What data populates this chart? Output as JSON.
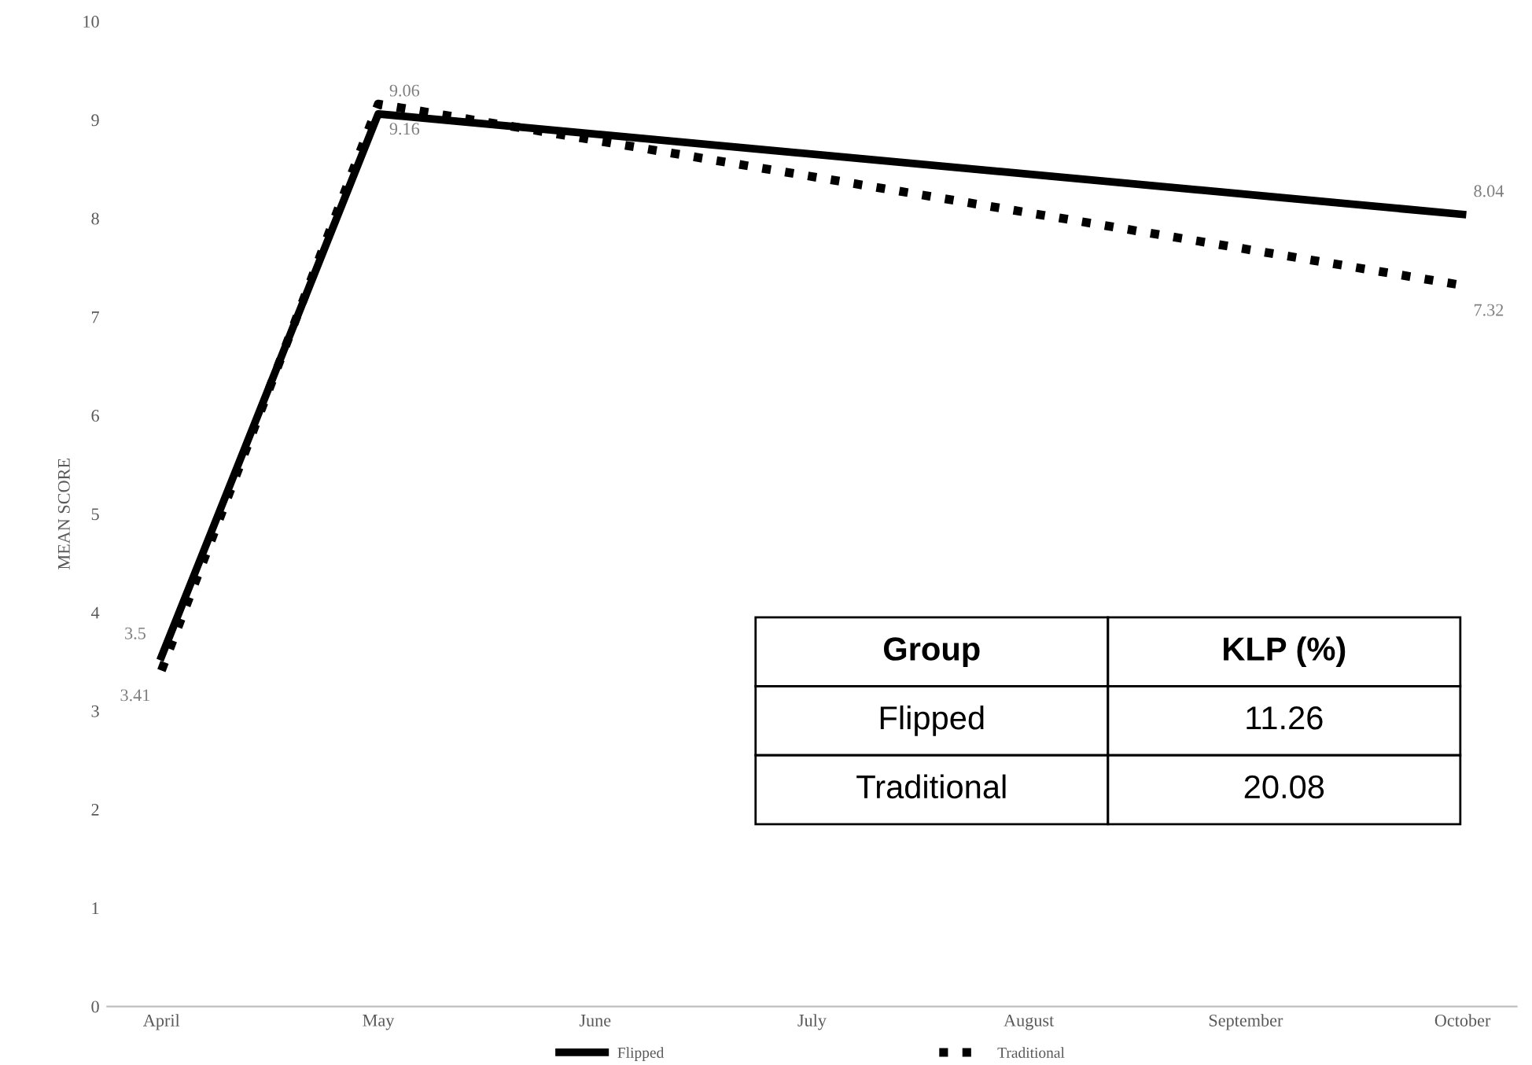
{
  "chart_data": {
    "type": "line",
    "ylabel": "MEAN SCORE",
    "categories": [
      "April",
      "May",
      "June",
      "July",
      "August",
      "September",
      "October"
    ],
    "series": [
      {
        "name": "Flipped",
        "color": "#000000",
        "line_style": "solid",
        "values": [
          3.55,
          9.06,
          null,
          null,
          null,
          null,
          8.04
        ],
        "value_labels": [
          "3.5",
          "9.06",
          null,
          null,
          null,
          null,
          "8.04"
        ]
      },
      {
        "name": "Traditional",
        "color": "#000000",
        "line_style": "dotted",
        "values": [
          3.41,
          9.16,
          null,
          null,
          null,
          null,
          7.32
        ],
        "value_labels": [
          "3.41",
          "9.16",
          null,
          null,
          null,
          null,
          "7.32"
        ]
      }
    ],
    "ylim": [
      0,
      10
    ],
    "yticks": [
      0,
      1,
      2,
      3,
      4,
      5,
      6,
      7,
      8,
      9,
      10
    ],
    "grid": false,
    "legend": "bottom",
    "marker": "none",
    "annotations": [
      "Group",
      "KLP (%)",
      "Flipped",
      "11.26",
      "Traditional",
      "20.08"
    ]
  }
}
